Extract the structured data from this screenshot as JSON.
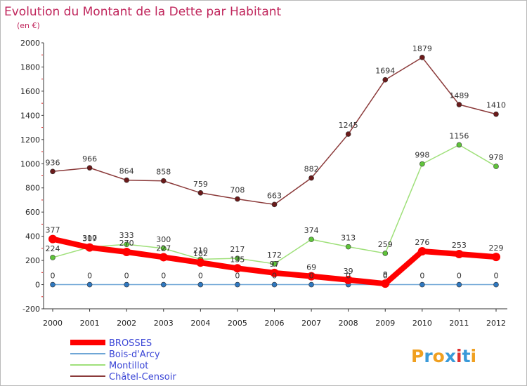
{
  "chart_data": {
    "type": "line",
    "title": "Evolution du Montant de la Dette par Habitant",
    "subtitle": "(en €)",
    "xlabel": "",
    "ylabel": "",
    "categories": [
      "2000",
      "2001",
      "2002",
      "2003",
      "2004",
      "2005",
      "2006",
      "2007",
      "2008",
      "2009",
      "2010",
      "2011",
      "2012"
    ],
    "ylim": [
      -200,
      2000
    ],
    "yticks": [
      -200,
      0,
      200,
      400,
      600,
      800,
      1000,
      1200,
      1400,
      1600,
      1800,
      2000
    ],
    "grid": false,
    "legend_position": "bottom-left",
    "series": [
      {
        "name": "BROSSES",
        "color": "#ff0000",
        "marker_color": "#ff0000",
        "values": [
          377,
          307,
          270,
          227,
          182,
          135,
          97,
          69,
          39,
          8,
          276,
          253,
          229
        ]
      },
      {
        "name": "Bois-d'Arcy",
        "color": "#6fa6d6",
        "marker_color": "#2f78c0",
        "values": [
          0,
          0,
          0,
          0,
          0,
          0,
          0,
          0,
          0,
          0,
          0,
          0,
          0
        ]
      },
      {
        "name": "Montillot",
        "color": "#9fe07a",
        "marker_color": "#5fc43a",
        "values": [
          224,
          310,
          333,
          300,
          210,
          217,
          172,
          374,
          313,
          259,
          998,
          1156,
          978
        ]
      },
      {
        "name": "Châtel-Censoir",
        "color": "#8b3a3a",
        "marker_color": "#6b1a1a",
        "values": [
          936,
          966,
          864,
          858,
          759,
          708,
          663,
          882,
          1245,
          1694,
          1879,
          1489,
          1410
        ]
      }
    ]
  },
  "logo": {
    "text": "Proxiti",
    "letters": [
      "P",
      "r",
      "o",
      "x",
      "i",
      "t",
      "i"
    ],
    "colors": [
      "#f0a020",
      "#3a9ad9",
      "#f0a020",
      "#3a9ad9",
      "#e03030",
      "#3a9ad9",
      "#f0a020"
    ]
  }
}
